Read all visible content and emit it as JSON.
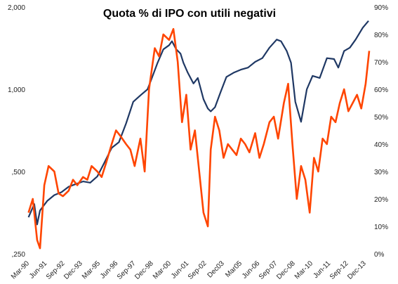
{
  "chart_data": {
    "type": "line",
    "title": "Quota % di IPO con utili negativi",
    "x_tick_labels": [
      "Mar-90",
      "Jun-91",
      "Sep-92",
      "Dec-93",
      "Mar-95",
      "Jun-96",
      "Sep-97",
      "Dec-98",
      "Mar-00",
      "Jun-01",
      "Sep-02",
      "Dec03",
      "Mar05",
      "Jun-06",
      "Sep-07",
      "Dec-08",
      "Mar-10",
      "Jun-11",
      "Sep-12",
      "Dec-13"
    ],
    "x_range": [
      1990.17,
      2014.0
    ],
    "left_axis": {
      "scale": "log",
      "ylim": [
        250,
        2000
      ],
      "tick_values": [
        250,
        500,
        1000,
        2000
      ],
      "tick_labels": [
        ",250",
        ",500",
        "1,000",
        "2,000"
      ]
    },
    "right_axis": {
      "ylim": [
        0,
        90
      ],
      "tick_values": [
        0,
        10,
        20,
        30,
        40,
        50,
        60,
        70,
        80,
        90
      ],
      "tick_labels": [
        "0%",
        "10%",
        "20%",
        "30%",
        "40%",
        "50%",
        "60%",
        "70%",
        "80%",
        "90%"
      ]
    },
    "grid": false,
    "legend": "none",
    "series": [
      {
        "axis": "left",
        "color": "#1f3864",
        "x": [
          1990.2,
          1990.6,
          1990.8,
          1991.0,
          1991.5,
          1992.0,
          1992.5,
          1993.0,
          1993.5,
          1994.0,
          1994.5,
          1995.0,
          1995.5,
          1996.0,
          1996.5,
          1997.0,
          1997.5,
          1998.0,
          1998.5,
          1998.8,
          1999.2,
          1999.6,
          2000.0,
          2000.2,
          2000.5,
          2000.8,
          2001.0,
          2001.3,
          2001.7,
          2002.0,
          2002.4,
          2002.7,
          2002.9,
          2003.2,
          2003.6,
          2004.0,
          2004.5,
          2005.0,
          2005.5,
          2006.0,
          2006.5,
          2007.0,
          2007.5,
          2007.8,
          2008.2,
          2008.5,
          2008.8,
          2009.2,
          2009.6,
          2010.0,
          2010.5,
          2011.0,
          2011.5,
          2011.8,
          2012.2,
          2012.6,
          2013.0,
          2013.5,
          2013.9
        ],
        "values": [
          340,
          380,
          320,
          360,
          390,
          410,
          420,
          440,
          450,
          460,
          455,
          480,
          540,
          610,
          640,
          750,
          900,
          950,
          1000,
          1100,
          1250,
          1400,
          1450,
          1500,
          1400,
          1350,
          1250,
          1150,
          1050,
          1100,
          920,
          850,
          830,
          860,
          980,
          1110,
          1150,
          1180,
          1200,
          1260,
          1300,
          1420,
          1520,
          1500,
          1380,
          1250,
          900,
          760,
          1000,
          1120,
          1100,
          1300,
          1290,
          1200,
          1380,
          1420,
          1520,
          1680,
          1780
        ]
      },
      {
        "axis": "right",
        "color": "#ff4500",
        "x": [
          1990.2,
          1990.5,
          1990.8,
          1991.0,
          1991.3,
          1991.6,
          1992.0,
          1992.3,
          1992.6,
          1993.0,
          1993.3,
          1993.6,
          1994.0,
          1994.3,
          1994.6,
          1995.0,
          1995.3,
          1995.6,
          1996.0,
          1996.3,
          1996.6,
          1997.0,
          1997.3,
          1997.6,
          1998.0,
          1998.3,
          1998.6,
          1999.0,
          1999.3,
          1999.6,
          2000.0,
          2000.3,
          2000.6,
          2000.9,
          2001.2,
          2001.5,
          2001.8,
          2002.1,
          2002.4,
          2002.7,
          2002.9,
          2003.2,
          2003.5,
          2003.8,
          2004.1,
          2004.4,
          2004.7,
          2005.0,
          2005.3,
          2005.6,
          2006.0,
          2006.3,
          2006.6,
          2007.0,
          2007.3,
          2007.6,
          2008.0,
          2008.3,
          2008.6,
          2008.9,
          2009.2,
          2009.5,
          2009.8,
          2010.1,
          2010.4,
          2010.7,
          2011.0,
          2011.3,
          2011.6,
          2011.9,
          2012.2,
          2012.5,
          2012.8,
          2013.1,
          2013.4,
          2013.7,
          2013.95
        ],
        "values": [
          15,
          20,
          5,
          2,
          25,
          32,
          30,
          22,
          21,
          23,
          27,
          25,
          28,
          27,
          32,
          30,
          28,
          33,
          40,
          45,
          43,
          40,
          38,
          32,
          42,
          30,
          60,
          75,
          72,
          80,
          78,
          82,
          70,
          48,
          58,
          38,
          45,
          30,
          15,
          10,
          38,
          50,
          45,
          35,
          40,
          38,
          36,
          42,
          40,
          37,
          44,
          35,
          40,
          48,
          50,
          42,
          55,
          62,
          40,
          20,
          32,
          27,
          15,
          35,
          30,
          42,
          40,
          50,
          48,
          55,
          60,
          52,
          55,
          58,
          53,
          62,
          74
        ]
      }
    ]
  }
}
